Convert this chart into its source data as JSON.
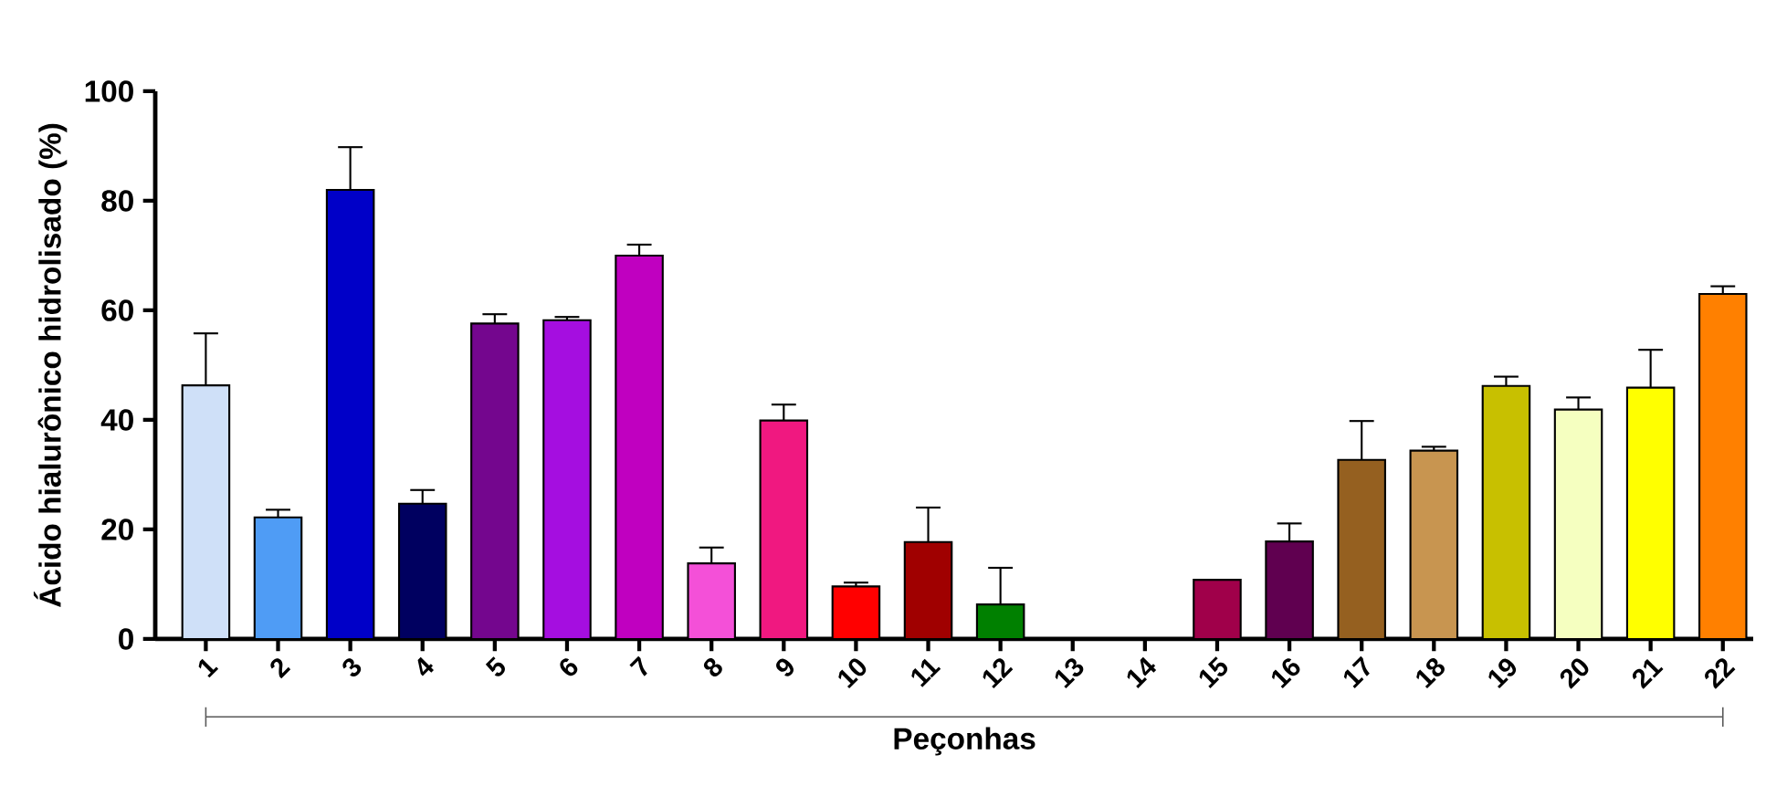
{
  "chart_data": {
    "type": "bar",
    "xlabel": "Peçonhas",
    "ylabel": "Ácido hialurônico hidrolisado (%)",
    "categories": [
      "1",
      "2",
      "3",
      "4",
      "5",
      "6",
      "7",
      "8",
      "9",
      "10",
      "11",
      "12",
      "13",
      "14",
      "15",
      "16",
      "17",
      "18",
      "19",
      "20",
      "21",
      "22"
    ],
    "values": [
      46.3,
      22.2,
      82,
      24.7,
      57.6,
      58.2,
      70,
      13.8,
      39.9,
      9.6,
      17.7,
      6.3,
      0,
      0,
      10.8,
      17.8,
      32.7,
      34.4,
      46.2,
      41.9,
      45.9,
      63
    ],
    "errors": [
      [
        46.3,
        55.8
      ],
      [
        22.2,
        23.6
      ],
      [
        82,
        89.8
      ],
      [
        24.7,
        27.2
      ],
      [
        57.6,
        59.3
      ],
      [
        58.2,
        58.8
      ],
      [
        70,
        72
      ],
      [
        13.8,
        16.7
      ],
      [
        39.9,
        42.8
      ],
      [
        9.6,
        10.3
      ],
      [
        17.7,
        24
      ],
      [
        6.3,
        13
      ],
      null,
      null,
      null,
      [
        17.8,
        21.1
      ],
      [
        32.7,
        39.8
      ],
      [
        34.4,
        35.1
      ],
      [
        46.2,
        47.9
      ],
      [
        41.9,
        44.1
      ],
      [
        45.9,
        52.8
      ],
      [
        63,
        64.4
      ]
    ],
    "colors": [
      "#cfe0f8",
      "#4f9cf5",
      "#0000c8",
      "#000060",
      "#74068e",
      "#a50ee0",
      "#c000c0",
      "#f450d8",
      "#f01880",
      "#ff0000",
      "#a00000",
      "#008000",
      "#888888",
      "#888888",
      "#a0004a",
      "#600050",
      "#956020",
      "#c89550",
      "#c8c000",
      "#f5ffc0",
      "#ffff00",
      "#ff8000"
    ],
    "ylim": [
      0,
      100
    ],
    "yticks": [
      0,
      20,
      40,
      60,
      80,
      100
    ],
    "grid": false
  }
}
